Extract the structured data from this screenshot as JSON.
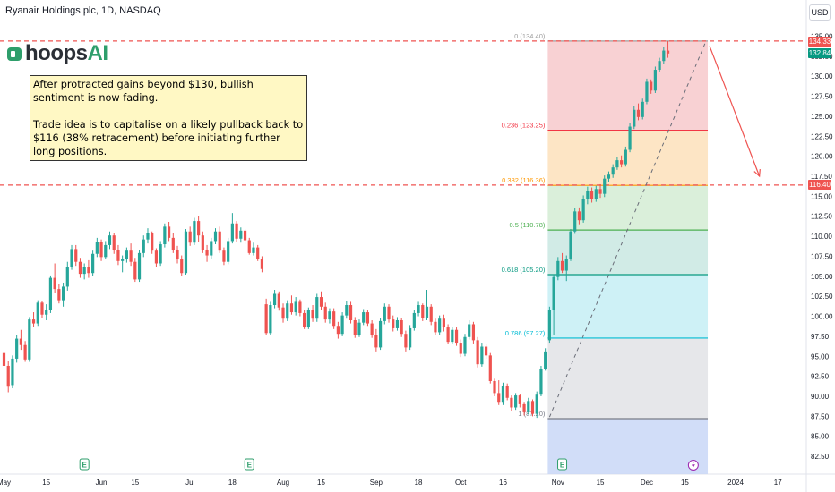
{
  "header": {
    "title": "Ryanair Holdings plc, 1D, NASDAQ",
    "currency": "USD"
  },
  "logo": {
    "part1": "hoops",
    "part2": "AI"
  },
  "annotation": {
    "line1": "After protracted gains beyond $130, bullish sentiment is now fading.",
    "line2": "Trade idea is to capitalise on a likely pullback back to $116 (38% retracement) before initiating further long positions."
  },
  "colors": {
    "up": "#26a69a",
    "down": "#ef5350",
    "dashed_level": "#ef5350",
    "arrow": "#ef5350"
  },
  "chart_data": {
    "type": "candlestick",
    "title": "Ryanair Holdings plc, 1D, NASDAQ",
    "ylim": [
      81.5,
      135.5
    ],
    "y_ticks": [
      "82.50",
      "85.00",
      "87.50",
      "90.00",
      "92.50",
      "95.00",
      "97.50",
      "100.00",
      "102.50",
      "105.00",
      "107.50",
      "110.00",
      "112.50",
      "115.00",
      "117.50",
      "120.00",
      "122.50",
      "125.00",
      "127.50",
      "130.00",
      "132.50",
      "135.00"
    ],
    "x_ticks": [
      {
        "label": "May",
        "bar": 0
      },
      {
        "label": "15",
        "bar": 10
      },
      {
        "label": "Jun",
        "bar": 23
      },
      {
        "label": "15",
        "bar": 31
      },
      {
        "label": "Jul",
        "bar": 44
      },
      {
        "label": "18",
        "bar": 54
      },
      {
        "label": "Aug",
        "bar": 66
      },
      {
        "label": "15",
        "bar": 75
      },
      {
        "label": "Sep",
        "bar": 88
      },
      {
        "label": "18",
        "bar": 98
      },
      {
        "label": "Oct",
        "bar": 108
      },
      {
        "label": "16",
        "bar": 118
      },
      {
        "label": "Nov",
        "bar": 131
      },
      {
        "label": "15",
        "bar": 141
      },
      {
        "label": "Dec",
        "bar": 152
      },
      {
        "label": "15",
        "bar": 161
      },
      {
        "label": "2024",
        "bar": 173
      },
      {
        "label": "17",
        "bar": 183
      }
    ],
    "earnings_markers": [
      19,
      58,
      132
    ],
    "event_marker": 163,
    "price_tags": [
      {
        "value": 134.33,
        "label": "134.33",
        "color": "#ef5350"
      },
      {
        "value": 132.84,
        "label": "132.84",
        "color": "#089981"
      },
      {
        "value": 116.4,
        "label": "116.40",
        "color": "#ef5350"
      }
    ],
    "dashed_levels": [
      134.4,
      116.4
    ],
    "fib": {
      "start_bar": 129,
      "end_bar": 166,
      "low": 87.2,
      "high": 134.4,
      "levels": [
        {
          "ratio": 0,
          "value": 134.4,
          "label": "0 (134.40)",
          "color": "#9e9e9e"
        },
        {
          "ratio": 0.236,
          "value": 123.25,
          "label": "0.236 (123.25)",
          "color": "#f23645"
        },
        {
          "ratio": 0.382,
          "value": 116.36,
          "label": "0.382 (116.36)",
          "color": "#ff9800"
        },
        {
          "ratio": 0.5,
          "value": 110.78,
          "label": "0.5 (110.78)",
          "color": "#4caf50"
        },
        {
          "ratio": 0.618,
          "value": 105.2,
          "label": "0.618 (105.20)",
          "color": "#089981"
        },
        {
          "ratio": 0.786,
          "value": 97.27,
          "label": "0.786 (97.27)",
          "color": "#00bcd4"
        },
        {
          "ratio": 1,
          "value": 87.2,
          "label": "1 (87.20)",
          "color": "#787b86"
        }
      ],
      "fills": [
        "#f7c9cb",
        "#fde0bb",
        "#d4ecd4",
        "#c9e8e2",
        "#c6eef5",
        "#e2e3e6",
        "#c9d7f7"
      ]
    },
    "trend_line": {
      "from_bar": 129,
      "from_value": 87.4,
      "to_bar": 166,
      "to_value": 134.4
    },
    "arrow": {
      "from_bar": 166,
      "from_value": 134.0,
      "to_bar": 178,
      "to_value": 117.5
    },
    "candles": [
      [
        95.4,
        96.2,
        93.5,
        93.8
      ],
      [
        93.8,
        94.4,
        90.5,
        91.2
      ],
      [
        91.4,
        95.1,
        91.0,
        94.7
      ],
      [
        94.7,
        97.6,
        94.2,
        97.2
      ],
      [
        97.2,
        98.3,
        95.8,
        96.4
      ],
      [
        96.4,
        96.9,
        94.3,
        94.6
      ],
      [
        94.6,
        99.9,
        94.3,
        99.6
      ],
      [
        99.6,
        100.5,
        98.7,
        99.1
      ],
      [
        99.1,
        102.0,
        98.8,
        101.7
      ],
      [
        101.7,
        101.9,
        99.8,
        100.2
      ],
      [
        100.2,
        101.5,
        99.5,
        100.8
      ],
      [
        100.8,
        105.1,
        100.4,
        104.8
      ],
      [
        104.8,
        106.6,
        102.9,
        103.4
      ],
      [
        103.4,
        104.0,
        101.6,
        102.0
      ],
      [
        102.0,
        104.2,
        101.2,
        103.7
      ],
      [
        103.7,
        106.8,
        103.2,
        106.2
      ],
      [
        106.2,
        108.9,
        105.8,
        108.4
      ],
      [
        108.4,
        108.9,
        106.3,
        106.8
      ],
      [
        106.8,
        107.3,
        104.8,
        105.3
      ],
      [
        105.3,
        106.6,
        104.6,
        106.1
      ],
      [
        106.1,
        107.0,
        104.8,
        105.4
      ],
      [
        105.4,
        108.2,
        105.0,
        107.8
      ],
      [
        107.8,
        109.8,
        107.4,
        109.3
      ],
      [
        109.3,
        109.6,
        106.9,
        107.4
      ],
      [
        107.4,
        109.4,
        107.1,
        108.9
      ],
      [
        108.9,
        110.6,
        108.4,
        110.1
      ],
      [
        110.1,
        110.4,
        107.8,
        108.3
      ],
      [
        108.3,
        108.9,
        106.4,
        106.9
      ],
      [
        106.9,
        107.6,
        105.5,
        107.1
      ],
      [
        107.1,
        108.6,
        106.7,
        108.2
      ],
      [
        108.2,
        109.1,
        106.3,
        106.8
      ],
      [
        106.8,
        107.3,
        104.3,
        104.6
      ],
      [
        104.6,
        108.3,
        104.3,
        107.9
      ],
      [
        107.9,
        110.1,
        107.4,
        109.6
      ],
      [
        109.6,
        111.0,
        109.1,
        110.4
      ],
      [
        110.4,
        110.6,
        107.8,
        108.2
      ],
      [
        108.2,
        108.5,
        106.2,
        106.6
      ],
      [
        106.6,
        109.4,
        106.3,
        109.0
      ],
      [
        109.0,
        111.6,
        108.6,
        111.2
      ],
      [
        111.2,
        111.8,
        109.4,
        109.8
      ],
      [
        109.8,
        110.4,
        107.9,
        108.3
      ],
      [
        108.3,
        108.8,
        106.6,
        107.1
      ],
      [
        107.1,
        107.6,
        105.0,
        105.4
      ],
      [
        105.4,
        110.9,
        105.2,
        110.6
      ],
      [
        110.6,
        111.2,
        108.8,
        109.2
      ],
      [
        109.2,
        112.3,
        108.9,
        111.9
      ],
      [
        111.9,
        112.5,
        109.3,
        110.1
      ],
      [
        110.1,
        110.6,
        107.9,
        108.3
      ],
      [
        108.3,
        108.9,
        106.8,
        107.6
      ],
      [
        107.6,
        109.8,
        107.2,
        109.4
      ],
      [
        109.4,
        111.0,
        109.0,
        110.6
      ],
      [
        110.6,
        111.2,
        107.9,
        108.2
      ],
      [
        108.2,
        108.6,
        106.4,
        106.8
      ],
      [
        106.8,
        109.8,
        106.5,
        109.4
      ],
      [
        109.4,
        112.9,
        109.1,
        111.6
      ],
      [
        111.6,
        111.9,
        109.3,
        109.7
      ],
      [
        109.7,
        111.1,
        109.2,
        110.7
      ],
      [
        110.7,
        110.9,
        109.0,
        109.5
      ],
      [
        109.5,
        109.8,
        107.7,
        107.9
      ],
      [
        107.9,
        109.2,
        107.6,
        108.6
      ],
      [
        108.6,
        108.9,
        106.9,
        107.2
      ],
      [
        107.2,
        107.5,
        105.5,
        105.9
      ],
      [
        101.5,
        102.2,
        97.6,
        97.9
      ],
      [
        97.9,
        101.8,
        97.6,
        101.4
      ],
      [
        101.4,
        103.3,
        101.0,
        102.8
      ],
      [
        102.8,
        103.1,
        100.7,
        101.1
      ],
      [
        101.1,
        101.6,
        99.2,
        99.7
      ],
      [
        99.7,
        102.0,
        99.4,
        101.6
      ],
      [
        101.6,
        102.6,
        100.2,
        100.5
      ],
      [
        100.5,
        102.4,
        100.1,
        101.8
      ],
      [
        101.8,
        102.1,
        100.0,
        100.4
      ],
      [
        100.4,
        100.8,
        98.4,
        98.7
      ],
      [
        98.7,
        101.1,
        98.4,
        100.8
      ],
      [
        100.8,
        101.4,
        99.3,
        99.7
      ],
      [
        99.7,
        102.8,
        99.3,
        102.4
      ],
      [
        102.4,
        103.1,
        100.8,
        101.2
      ],
      [
        101.2,
        101.7,
        99.2,
        99.6
      ],
      [
        99.6,
        101.0,
        99.1,
        100.6
      ],
      [
        100.6,
        101.0,
        98.4,
        98.8
      ],
      [
        98.8,
        99.3,
        97.2,
        97.8
      ],
      [
        97.8,
        100.5,
        97.5,
        100.1
      ],
      [
        100.1,
        101.9,
        99.7,
        101.4
      ],
      [
        101.4,
        101.8,
        99.1,
        99.5
      ],
      [
        99.5,
        99.9,
        97.3,
        97.7
      ],
      [
        97.7,
        99.6,
        97.4,
        99.2
      ],
      [
        99.2,
        100.9,
        98.9,
        100.5
      ],
      [
        100.5,
        100.8,
        98.8,
        99.1
      ],
      [
        99.1,
        99.5,
        97.3,
        97.6
      ],
      [
        97.6,
        98.4,
        95.6,
        96.1
      ],
      [
        96.1,
        99.8,
        95.8,
        99.4
      ],
      [
        99.4,
        101.6,
        99.0,
        101.2
      ],
      [
        101.2,
        101.5,
        99.2,
        99.6
      ],
      [
        99.6,
        100.1,
        98.1,
        98.5
      ],
      [
        98.5,
        99.9,
        98.2,
        99.5
      ],
      [
        99.5,
        99.8,
        97.4,
        97.8
      ],
      [
        97.8,
        98.2,
        95.6,
        96.1
      ],
      [
        96.1,
        98.9,
        95.8,
        98.5
      ],
      [
        98.5,
        100.8,
        98.2,
        100.4
      ],
      [
        100.4,
        101.8,
        100.0,
        101.4
      ],
      [
        101.4,
        101.6,
        99.4,
        99.8
      ],
      [
        99.8,
        103.3,
        99.5,
        101.2
      ],
      [
        101.2,
        101.5,
        98.9,
        99.3
      ],
      [
        99.3,
        99.7,
        97.6,
        98.0
      ],
      [
        98.0,
        100.1,
        97.7,
        99.7
      ],
      [
        99.7,
        100.2,
        98.1,
        98.6
      ],
      [
        98.6,
        99.0,
        96.5,
        96.8
      ],
      [
        96.8,
        98.7,
        96.5,
        98.3
      ],
      [
        98.3,
        98.6,
        96.3,
        96.7
      ],
      [
        96.7,
        97.1,
        94.9,
        95.3
      ],
      [
        95.3,
        97.8,
        95.0,
        97.4
      ],
      [
        97.4,
        99.5,
        97.1,
        99.0
      ],
      [
        99.0,
        99.3,
        96.6,
        97.0
      ],
      [
        97.0,
        97.4,
        93.6,
        94.0
      ],
      [
        94.0,
        96.7,
        93.7,
        96.2
      ],
      [
        96.2,
        96.5,
        94.7,
        95.1
      ],
      [
        95.1,
        95.4,
        91.6,
        91.9
      ],
      [
        91.9,
        92.2,
        90.0,
        90.4
      ],
      [
        90.4,
        92.0,
        88.9,
        89.3
      ],
      [
        89.3,
        91.7,
        88.9,
        91.3
      ],
      [
        91.3,
        91.6,
        89.5,
        89.8
      ],
      [
        89.8,
        90.1,
        88.2,
        88.6
      ],
      [
        88.6,
        90.4,
        88.3,
        90.1
      ],
      [
        90.1,
        90.3,
        88.6,
        89.0
      ],
      [
        89.0,
        89.3,
        87.6,
        88.0
      ],
      [
        88.0,
        89.8,
        87.7,
        89.4
      ],
      [
        89.4,
        89.6,
        87.5,
        87.8
      ],
      [
        87.8,
        90.6,
        87.3,
        90.2
      ],
      [
        90.2,
        93.8,
        90.0,
        93.4
      ],
      [
        93.4,
        96.0,
        93.2,
        95.6
      ],
      [
        97.0,
        101.2,
        96.7,
        100.8
      ],
      [
        100.8,
        105.2,
        97.6,
        104.9
      ],
      [
        104.9,
        107.4,
        104.5,
        106.9
      ],
      [
        106.9,
        107.9,
        105.4,
        105.7
      ],
      [
        105.7,
        107.6,
        104.4,
        107.2
      ],
      [
        107.2,
        110.9,
        106.9,
        110.6
      ],
      [
        110.6,
        113.5,
        110.3,
        113.1
      ],
      [
        113.1,
        113.6,
        111.5,
        112.0
      ],
      [
        112.0,
        115.1,
        111.7,
        114.6
      ],
      [
        114.6,
        116.2,
        114.0,
        115.7
      ],
      [
        115.7,
        116.1,
        114.2,
        114.6
      ],
      [
        114.6,
        116.3,
        114.3,
        115.9
      ],
      [
        115.9,
        116.5,
        114.8,
        115.3
      ],
      [
        115.3,
        117.6,
        114.9,
        117.2
      ],
      [
        117.2,
        118.1,
        116.8,
        117.7
      ],
      [
        117.7,
        119.0,
        117.3,
        118.6
      ],
      [
        118.6,
        119.9,
        118.3,
        119.5
      ],
      [
        119.5,
        120.1,
        118.6,
        119.0
      ],
      [
        119.0,
        121.2,
        118.7,
        120.8
      ],
      [
        120.8,
        124.2,
        120.5,
        123.7
      ],
      [
        123.7,
        126.3,
        123.4,
        125.8
      ],
      [
        125.8,
        126.6,
        124.5,
        124.9
      ],
      [
        124.9,
        127.2,
        124.6,
        126.8
      ],
      [
        126.8,
        129.7,
        126.5,
        129.3
      ],
      [
        129.3,
        129.6,
        127.8,
        128.2
      ],
      [
        128.2,
        131.2,
        127.9,
        130.8
      ],
      [
        130.8,
        132.3,
        130.5,
        131.9
      ],
      [
        131.9,
        133.6,
        131.5,
        133.2
      ],
      [
        133.2,
        134.4,
        132.3,
        132.84
      ]
    ]
  }
}
